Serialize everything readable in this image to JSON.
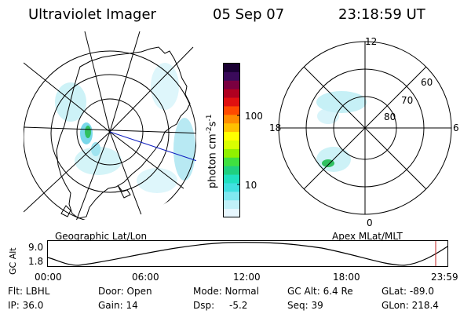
{
  "header": {
    "instrument": "Ultraviolet Imager",
    "date": "05 Sep 07",
    "time": "23:18:59 UT"
  },
  "colorbar": {
    "label": "photon cm",
    "label_sup1": "-2",
    "label_mid": "s",
    "label_sup2": "-1",
    "ticks": [
      "100",
      "10"
    ],
    "colors": [
      "#1a0033",
      "#3a0a5a",
      "#7a0040",
      "#b00020",
      "#e01010",
      "#ff4a00",
      "#ff8c00",
      "#ffc000",
      "#ffff00",
      "#d8ff00",
      "#90f000",
      "#40e040",
      "#20d080",
      "#20e0c0",
      "#40e0e0",
      "#80e8f0",
      "#c0f0f8",
      "#e8f8ff"
    ]
  },
  "left_map": {
    "title": "Geographic Lat/Lon"
  },
  "right_map": {
    "title": "Apex MLat/MLT",
    "mlt_labels": {
      "top": "12",
      "left": "18",
      "right": "6",
      "bottom": "0"
    },
    "lat_labels": [
      "60",
      "70",
      "80"
    ]
  },
  "altitude_plot": {
    "ylabel": "GC Alt",
    "yticks": [
      "9.0",
      "1.8"
    ],
    "xticks": [
      "00:00",
      "06:00",
      "12:00",
      "18:00",
      "23:59"
    ]
  },
  "status": {
    "row1": {
      "flt": "Flt: LBHL",
      "door": "Door: Open",
      "mode": "Mode: Normal",
      "gcalt": "GC Alt: 6.4 Re",
      "glat": "GLat: -89.0"
    },
    "row2": {
      "ip": "IP: 36.0",
      "gain": "Gain: 14",
      "dsp_label": "Dsp:",
      "dsp_value": "-5.2",
      "seq": "Seq: 39",
      "glon": "GLon: 218.4"
    }
  },
  "colors": {
    "aurora_light": "#b8ecf4",
    "aurora_mid": "#7ad8ea",
    "aurora_green": "#30c060",
    "meridian_line": "#1020c0",
    "time_marker": "#c02020"
  }
}
